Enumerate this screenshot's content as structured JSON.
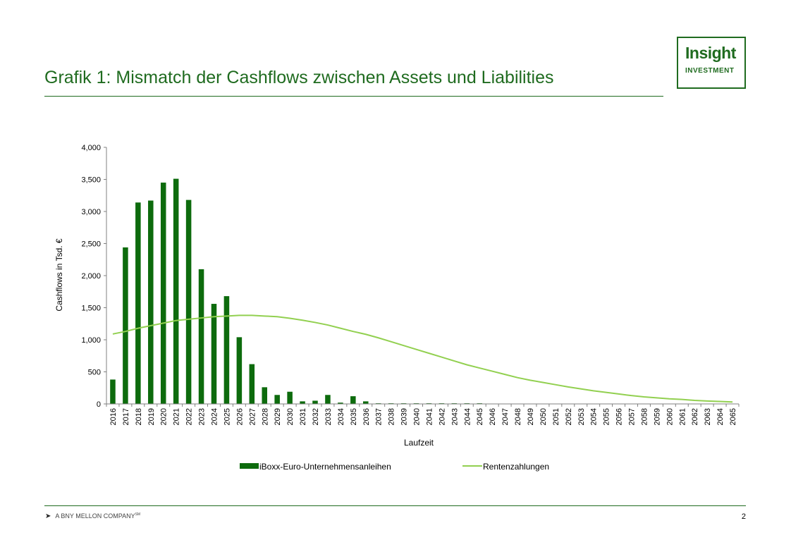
{
  "page": {
    "title": "Grafik 1: Mismatch der Cashflows zwischen Assets und Liabilities",
    "page_number": "2"
  },
  "logo": {
    "word": "Insight",
    "sub": "INVESTMENT"
  },
  "footer": {
    "brand": "A BNY MELLON COMPANY",
    "brand_mark": "SM"
  },
  "colors": {
    "brand_green": "#1f6b1f",
    "bar": "#0d6b0d",
    "line": "#92d050",
    "axis": "#808080"
  },
  "chart_data": {
    "type": "bar",
    "xlabel": "Laufzeit",
    "ylabel": "Cashflows  in Tsd.  €",
    "ylim": [
      0,
      4000
    ],
    "yticks": [
      0,
      500,
      1000,
      1500,
      2000,
      2500,
      3000,
      3500,
      4000
    ],
    "ytick_labels": [
      "0",
      "500",
      "1,000",
      "1,500",
      "2,000",
      "2,500",
      "3,000",
      "3,500",
      "4,000"
    ],
    "grid": false,
    "legend_position": "bottom",
    "categories": [
      "2016",
      "2017",
      "2018",
      "2019",
      "2020",
      "2021",
      "2022",
      "2023",
      "2024",
      "2025",
      "2026",
      "2027",
      "2028",
      "2029",
      "2030",
      "2031",
      "2032",
      "2033",
      "2034",
      "2035",
      "2036",
      "2037",
      "2038",
      "2039",
      "2040",
      "2041",
      "2042",
      "2043",
      "2044",
      "2045",
      "2046",
      "2047",
      "2048",
      "2049",
      "2050",
      "2051",
      "2052",
      "2053",
      "2054",
      "2055",
      "2056",
      "2057",
      "2058",
      "2059",
      "2060",
      "2061",
      "2062",
      "2063",
      "2064",
      "2065"
    ],
    "series": [
      {
        "name": "iBoxx-Euro-Unternehmensanleihen",
        "type": "bar",
        "values": [
          380,
          2440,
          3140,
          3170,
          3450,
          3510,
          3180,
          2100,
          1560,
          1680,
          1040,
          620,
          260,
          140,
          190,
          40,
          50,
          140,
          20,
          120,
          40,
          10,
          10,
          10,
          10,
          10,
          10,
          10,
          10,
          10,
          0,
          0,
          0,
          0,
          0,
          0,
          0,
          0,
          0,
          0,
          0,
          0,
          0,
          0,
          0,
          0,
          0,
          0,
          0,
          0
        ]
      },
      {
        "name": "Rentenzahlungen",
        "type": "line",
        "values": [
          1090,
          1130,
          1180,
          1220,
          1260,
          1300,
          1320,
          1340,
          1360,
          1370,
          1380,
          1380,
          1370,
          1360,
          1335,
          1305,
          1270,
          1230,
          1180,
          1130,
          1085,
          1030,
          970,
          910,
          850,
          790,
          730,
          670,
          610,
          560,
          510,
          460,
          410,
          370,
          335,
          300,
          265,
          235,
          205,
          180,
          155,
          130,
          110,
          95,
          80,
          70,
          55,
          45,
          38,
          30
        ]
      }
    ]
  }
}
